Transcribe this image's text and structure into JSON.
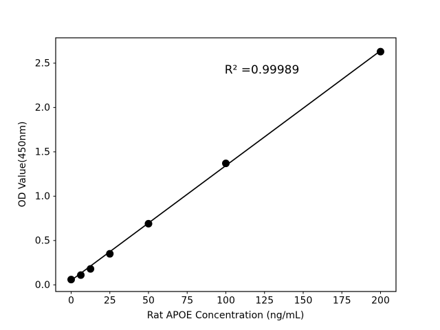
{
  "figure": {
    "background": "#ffffff",
    "axis_color": "#000000",
    "line_color": "#000000",
    "marker_color": "#000000"
  },
  "chart_data": {
    "type": "scatter",
    "title": "",
    "xlabel": "Rat APOE Concentration (ng/mL)",
    "ylabel": "OD Value(450nm)",
    "annotation": "R² =0.99989",
    "x": [
      0,
      6.25,
      12.5,
      25,
      50,
      100,
      200
    ],
    "y": [
      0.06,
      0.11,
      0.18,
      0.35,
      0.69,
      1.37,
      2.63
    ],
    "trendline": {
      "x_start": 0,
      "y_start": 0.05,
      "x_end": 200,
      "y_end": 2.64
    },
    "xlim": [
      -10,
      210
    ],
    "ylim": [
      -0.075,
      2.786
    ],
    "xticks": [
      0,
      25,
      50,
      75,
      100,
      125,
      150,
      175,
      200
    ],
    "yticks": [
      0.0,
      0.5,
      1.0,
      1.5,
      2.0,
      2.5
    ],
    "xtick_labels": [
      "0",
      "25",
      "50",
      "75",
      "100",
      "125",
      "150",
      "175",
      "200"
    ],
    "ytick_labels": [
      "0.0",
      "0.5",
      "1.0",
      "1.5",
      "2.0",
      "2.5"
    ],
    "grid": false,
    "legend": null,
    "marker_radius": 5.5,
    "line_width": 1.7
  }
}
